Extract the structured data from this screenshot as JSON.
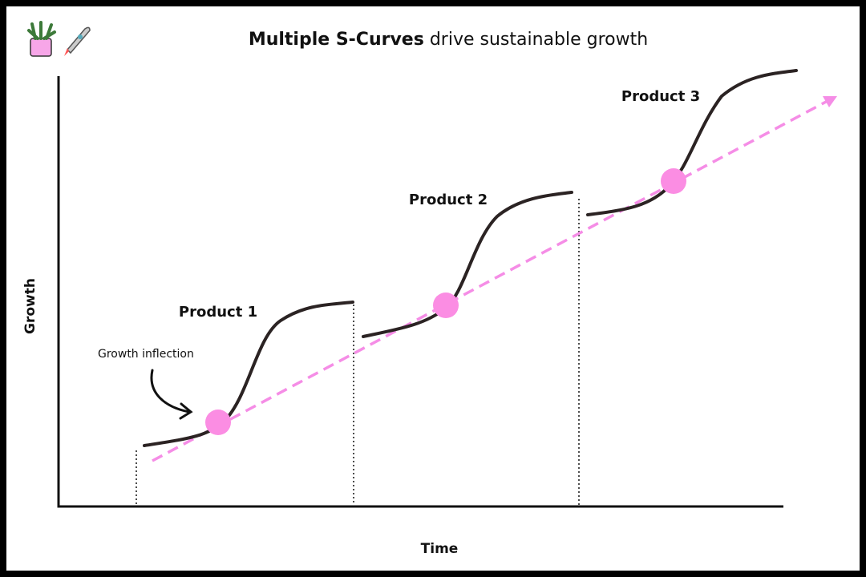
{
  "title": {
    "bold": "Multiple S-Curves",
    "rest": "drive sustainable growth"
  },
  "axes": {
    "y_label": "Growth",
    "x_label": "Time"
  },
  "products": [
    {
      "label": "Product 1"
    },
    {
      "label": "Product 2"
    },
    {
      "label": "Product 3"
    }
  ],
  "annotation": "Growth inflection"
}
